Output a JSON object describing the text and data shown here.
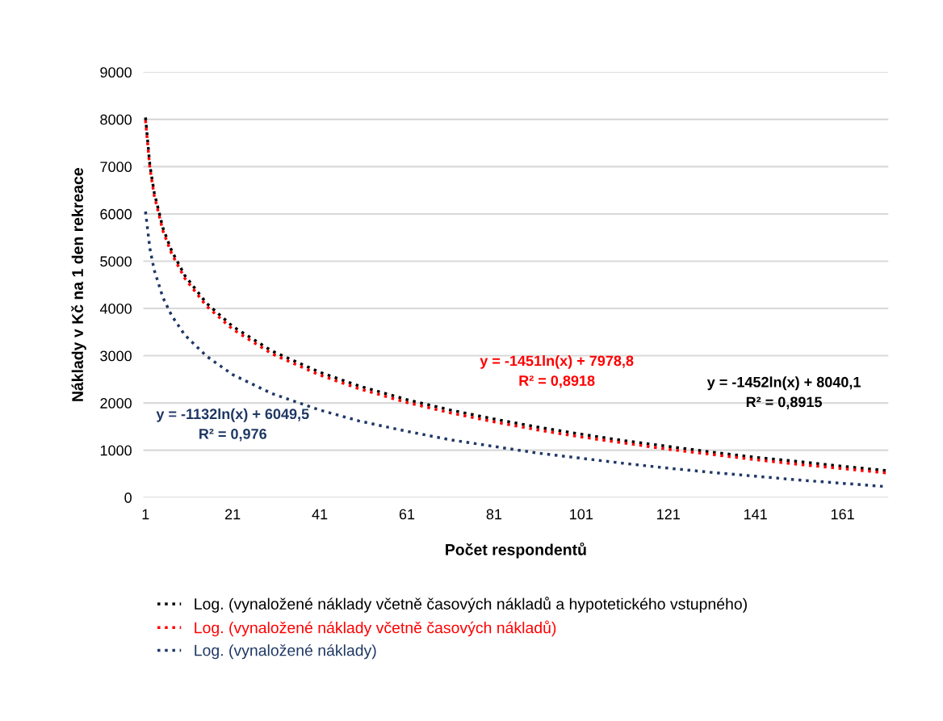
{
  "chart_data": {
    "type": "line",
    "xlabel": "Počet respondentů",
    "ylabel": "Náklady v Kč na 1 den rekreace",
    "x": [
      1,
      2,
      3,
      5,
      7,
      10,
      15,
      21,
      30,
      41,
      50,
      61,
      71,
      81,
      91,
      101,
      111,
      121,
      131,
      141,
      151,
      161,
      171
    ],
    "xlim": [
      0.5,
      171.5
    ],
    "xticks": [
      1,
      21,
      41,
      61,
      81,
      101,
      121,
      141,
      161
    ],
    "ylim": [
      0,
      9000
    ],
    "yticks": [
      0,
      1000,
      2000,
      3000,
      4000,
      5000,
      6000,
      7000,
      8000,
      9000
    ],
    "grid": "y",
    "legend": "bottom",
    "marker": "none",
    "line_style": "dotted",
    "series": [
      {
        "name": "Log. (vynaložené náklady včetně časových nákladů a hypotetického vstupného)",
        "color": "#000000",
        "values": [
          8040,
          7030,
          6450,
          5700,
          5220,
          4700,
          4110,
          3620,
          3100,
          2650,
          2360,
          2070,
          1850,
          1660,
          1490,
          1340,
          1200,
          1080,
          960,
          850,
          760,
          660,
          570
        ]
      },
      {
        "name": "Log. (vynaložené náklady včetně časových nákladů)",
        "color": "#ff0000",
        "values": [
          7980,
          6970,
          6390,
          5640,
          5160,
          4640,
          4050,
          3560,
          3040,
          2590,
          2300,
          2010,
          1790,
          1600,
          1430,
          1280,
          1150,
          1020,
          910,
          800,
          700,
          610,
          520
        ]
      },
      {
        "name": "Log. (vynaložené náklady)",
        "color": "#1f3864",
        "values": [
          6050,
          5270,
          4810,
          4230,
          3850,
          3440,
          2990,
          2600,
          2200,
          1850,
          1620,
          1400,
          1220,
          1080,
          940,
          830,
          720,
          620,
          530,
          450,
          370,
          300,
          230
        ]
      }
    ],
    "annotations": [
      "y = -1452ln(x) + 8040,1\nR² = 0,8915",
      "y = -1451ln(x) + 7978,8\nR² = 0,8918",
      "y = -1132ln(x) + 6049,5\nR² = 0,976"
    ]
  }
}
